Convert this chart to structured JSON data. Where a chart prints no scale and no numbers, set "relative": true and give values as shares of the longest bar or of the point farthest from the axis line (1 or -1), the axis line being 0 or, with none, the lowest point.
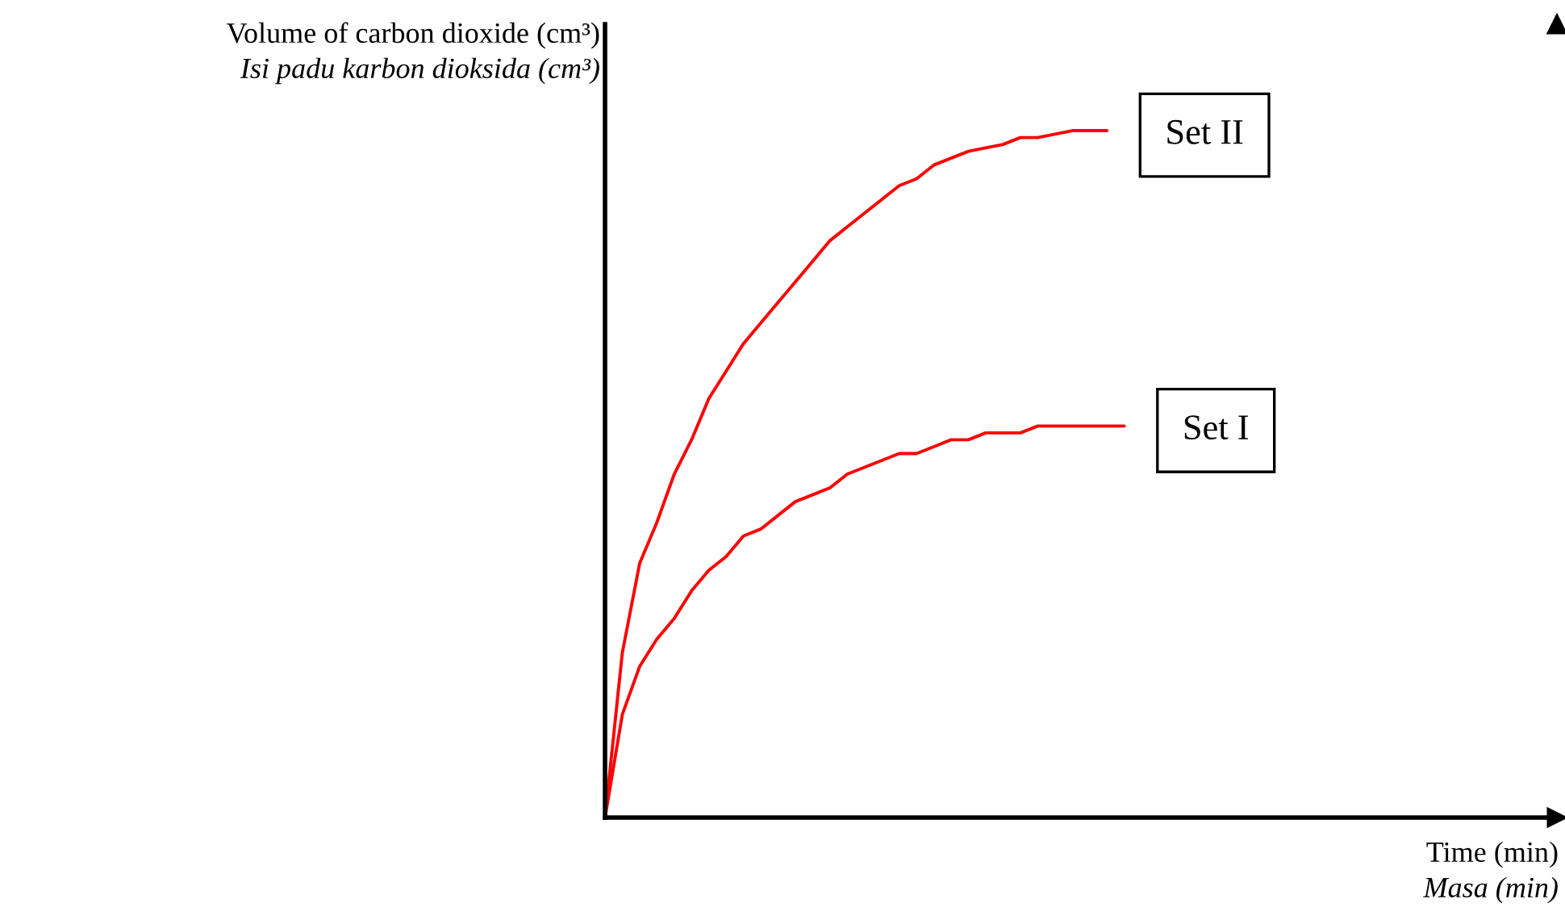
{
  "chart_data": {
    "type": "line",
    "relative": true,
    "ylabel": "Volume of carbon dioxide (cm³)\nIsi padu karbon dioksida (cm³)",
    "xlabel": "Time (min)\nMasa (min)",
    "categories": [
      null,
      null,
      null,
      null,
      null,
      null,
      null,
      null,
      null,
      null,
      null,
      null,
      null,
      null,
      null,
      null,
      null,
      null,
      null,
      null,
      null,
      null,
      null,
      null,
      null,
      null,
      null,
      null,
      null,
      null,
      null,
      null,
      null,
      null,
      null,
      null,
      null,
      null,
      null,
      null,
      null,
      null,
      null,
      null,
      null,
      null,
      null,
      null,
      null,
      null,
      null,
      null,
      null,
      null,
      null,
      null
    ],
    "series": [
      {
        "name": "Set II",
        "color": "#ff0000",
        "values": [
          0,
          0.24,
          0.37,
          0.43,
          0.5,
          0.55,
          0.61,
          0.65,
          0.69,
          0.72,
          0.75,
          0.78,
          0.81,
          0.84,
          0.86,
          0.88,
          0.9,
          0.92,
          0.93,
          0.95,
          0.96,
          0.97,
          0.975,
          0.98,
          0.99,
          0.99,
          0.995,
          1,
          1,
          1,
          null,
          null,
          null,
          null,
          null,
          null,
          null,
          null,
          null,
          null,
          null,
          null,
          null,
          null,
          null,
          null,
          null,
          null,
          null,
          null,
          null,
          null,
          null,
          null,
          null,
          null
        ]
      },
      {
        "name": "Set I",
        "color": "#ff0000",
        "values": [
          0,
          0.15,
          0.22,
          0.26,
          0.29,
          0.33,
          0.36,
          0.38,
          0.41,
          0.42,
          0.44,
          0.46,
          0.47,
          0.48,
          0.5,
          0.51,
          0.52,
          0.53,
          0.53,
          0.54,
          0.55,
          0.55,
          0.56,
          0.56,
          0.56,
          0.57,
          0.57,
          0.57,
          0.57,
          0.57,
          0.57,
          null,
          null,
          null,
          null,
          null,
          null,
          null,
          null,
          null,
          null,
          null,
          null,
          null,
          null,
          null,
          null,
          null,
          null,
          null,
          null,
          null,
          null,
          null,
          null,
          null
        ]
      }
    ],
    "legend": false,
    "marker": "none",
    "line_style": "solid"
  }
}
